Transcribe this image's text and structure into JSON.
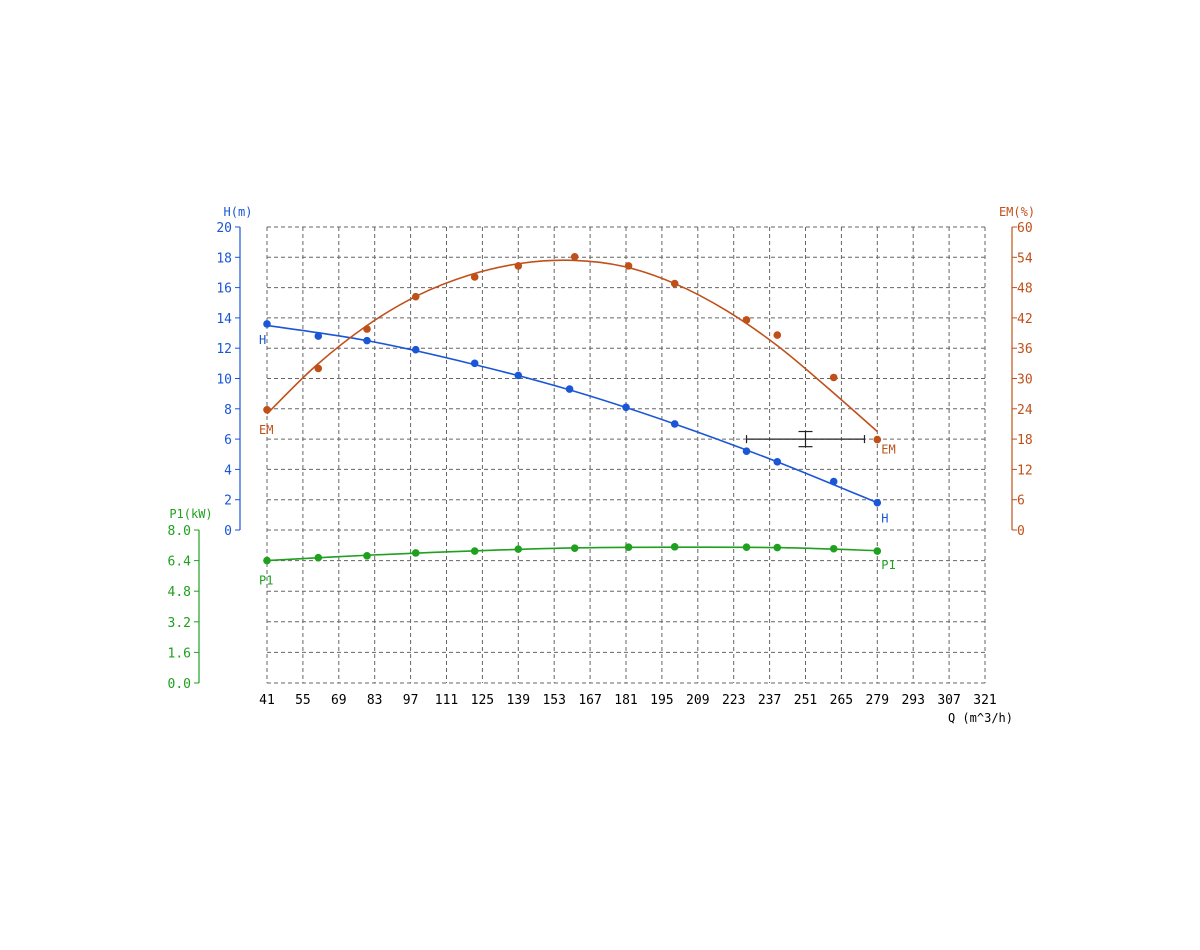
{
  "chart_data": {
    "type": "line",
    "x": {
      "label": "Q (m^3/h)",
      "range": [
        41,
        321
      ],
      "ticks": [
        "41",
        "55",
        "69",
        "83",
        "97",
        "111",
        "125",
        "139",
        "153",
        "167",
        "181",
        "195",
        "209",
        "223",
        "237",
        "251",
        "265",
        "279",
        "293",
        "307",
        "321"
      ]
    },
    "axes": {
      "H": {
        "label": "H(m)",
        "range": [
          0,
          20
        ],
        "ticks": [
          "0",
          "2",
          "4",
          "6",
          "8",
          "10",
          "12",
          "14",
          "16",
          "18",
          "20"
        ],
        "color": "#1a56d6"
      },
      "EM": {
        "label": "EM(%)",
        "range": [
          0,
          60
        ],
        "ticks": [
          "0",
          "6",
          "12",
          "18",
          "24",
          "30",
          "36",
          "42",
          "48",
          "54",
          "60"
        ],
        "color": "#c0501a"
      },
      "P1": {
        "label": "P1(kW)",
        "range": [
          0,
          8
        ],
        "ticks": [
          "0.0",
          "1.6",
          "3.2",
          "4.8",
          "6.4",
          "8.0"
        ],
        "color": "#1fa01f"
      }
    },
    "series": [
      {
        "name": "H",
        "axis": "H",
        "points": [
          [
            41,
            13.6
          ],
          [
            61,
            12.8
          ],
          [
            80,
            12.5
          ],
          [
            99,
            11.9
          ],
          [
            122,
            11.0
          ],
          [
            139,
            10.2
          ],
          [
            159,
            9.3
          ],
          [
            181,
            8.1
          ],
          [
            200,
            7.0
          ],
          [
            228,
            5.2
          ],
          [
            240,
            4.5
          ],
          [
            262,
            3.2
          ],
          [
            279,
            1.8
          ]
        ],
        "curve": [
          [
            41,
            13.5
          ],
          [
            80,
            12.5
          ],
          [
            120,
            11.0
          ],
          [
            160,
            9.2
          ],
          [
            200,
            7.0
          ],
          [
            240,
            4.5
          ],
          [
            279,
            1.8
          ]
        ]
      },
      {
        "name": "EM",
        "axis": "EM",
        "points": [
          [
            41,
            23.8
          ],
          [
            61,
            32.0
          ],
          [
            80,
            39.8
          ],
          [
            99,
            46.2
          ],
          [
            122,
            50.1
          ],
          [
            139,
            52.3
          ],
          [
            161,
            54.1
          ],
          [
            182,
            52.3
          ],
          [
            200,
            48.8
          ],
          [
            228,
            41.6
          ],
          [
            240,
            38.6
          ],
          [
            262,
            30.2
          ],
          [
            279,
            17.9
          ]
        ],
        "curve": [
          [
            41,
            23.0
          ],
          [
            60,
            32.5
          ],
          [
            80,
            40.5
          ],
          [
            100,
            46.5
          ],
          [
            120,
            50.5
          ],
          [
            140,
            52.8
          ],
          [
            160,
            53.4
          ],
          [
            180,
            52.2
          ],
          [
            200,
            48.8
          ],
          [
            220,
            43.5
          ],
          [
            240,
            36.5
          ],
          [
            260,
            28.0
          ],
          [
            279,
            19.5
          ]
        ]
      },
      {
        "name": "P1",
        "axis": "P1",
        "points": [
          [
            41,
            6.4
          ],
          [
            61,
            6.55
          ],
          [
            80,
            6.65
          ],
          [
            99,
            6.8
          ],
          [
            122,
            6.9
          ],
          [
            139,
            7.0
          ],
          [
            161,
            7.05
          ],
          [
            182,
            7.1
          ],
          [
            200,
            7.12
          ],
          [
            228,
            7.1
          ],
          [
            240,
            7.08
          ],
          [
            262,
            7.02
          ],
          [
            279,
            6.9
          ]
        ],
        "curve": [
          [
            41,
            6.4
          ],
          [
            80,
            6.68
          ],
          [
            120,
            6.9
          ],
          [
            160,
            7.06
          ],
          [
            200,
            7.1
          ],
          [
            240,
            7.08
          ],
          [
            279,
            6.92
          ]
        ]
      }
    ],
    "grid": true,
    "operating_point": {
      "x": 251,
      "H": 6.0,
      "x_range": [
        228,
        274
      ],
      "h_range": [
        5.5,
        6.5
      ]
    }
  }
}
